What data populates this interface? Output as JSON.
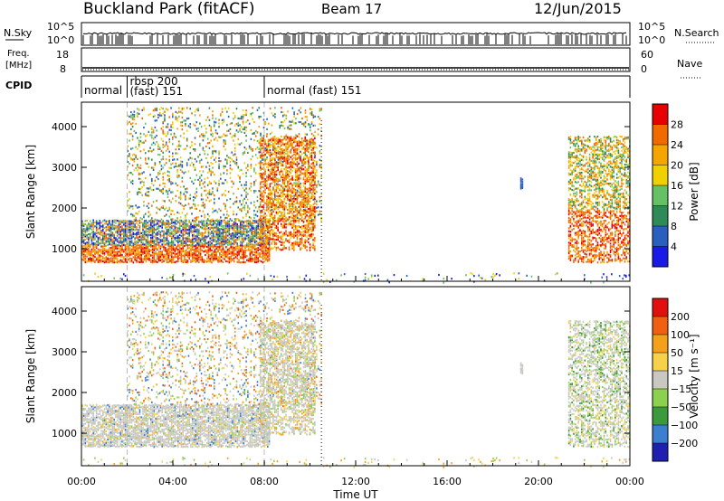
{
  "header": {
    "station": "Buckland Park (fitACF)",
    "beam": "Beam 17",
    "date": "12/Jun/2015"
  },
  "noise_panel": {
    "left_label": "N.Sky",
    "right_label": "N.Search",
    "left_ticks": [
      "10^5",
      "10^0"
    ],
    "right_ticks": [
      "10^5",
      "10^0"
    ]
  },
  "freq_panel": {
    "left_label_line1": "Freq.",
    "left_label_line2": "[MHz]",
    "right_label": "Nave",
    "left_ticks": [
      "18",
      "8"
    ],
    "right_ticks": [
      "60",
      "0"
    ]
  },
  "cpid": {
    "label": "CPID",
    "segments": [
      {
        "start_ut": 0,
        "end_ut": 2,
        "text": "normal",
        "text2": ""
      },
      {
        "start_ut": 2,
        "end_ut": 8,
        "text": "rbsp 200",
        "text2": "(fast) 151"
      },
      {
        "start_ut": 8,
        "end_ut": 24,
        "text": "normal (fast) 151",
        "text2": ""
      }
    ]
  },
  "chart_data": [
    {
      "type": "heatmap",
      "name": "power",
      "ylabel": "Slant Range [km]",
      "ylim": [
        200,
        4600
      ],
      "xlim": [
        0,
        24
      ],
      "yticks": [
        "1000",
        "2000",
        "3000",
        "4000"
      ],
      "colorbar": {
        "label": "Power [dB]",
        "ticks": [
          "4",
          "8",
          "12",
          "16",
          "20",
          "24",
          "28"
        ],
        "colors": [
          "#1a1ae6",
          "#2a5fbf",
          "#2e8b57",
          "#66c166",
          "#f0d000",
          "#f5a500",
          "#f06a00",
          "#e60000"
        ]
      }
    },
    {
      "type": "heatmap",
      "name": "velocity",
      "ylabel": "Slant Range [km]",
      "ylim": [
        200,
        4600
      ],
      "xlim": [
        0,
        24
      ],
      "yticks": [
        "1000",
        "2000",
        "3000",
        "4000"
      ],
      "colorbar": {
        "label": "Velocity [m s⁻¹]",
        "ticks": [
          "200",
          "100",
          "50",
          "15",
          "−15",
          "−50",
          "−100",
          "−200"
        ],
        "colors": [
          "#2020b0",
          "#3c7fd0",
          "#3c9a3c",
          "#8cd050",
          "#c8c8c0",
          "#f5d24a",
          "#f5a01a",
          "#f06010",
          "#e01010"
        ]
      }
    }
  ],
  "x_axis": {
    "ticks": [
      "00:00",
      "04:00",
      "08:00",
      "12:00",
      "16:00",
      "20:00",
      "00:00"
    ],
    "label": "Time UT"
  }
}
